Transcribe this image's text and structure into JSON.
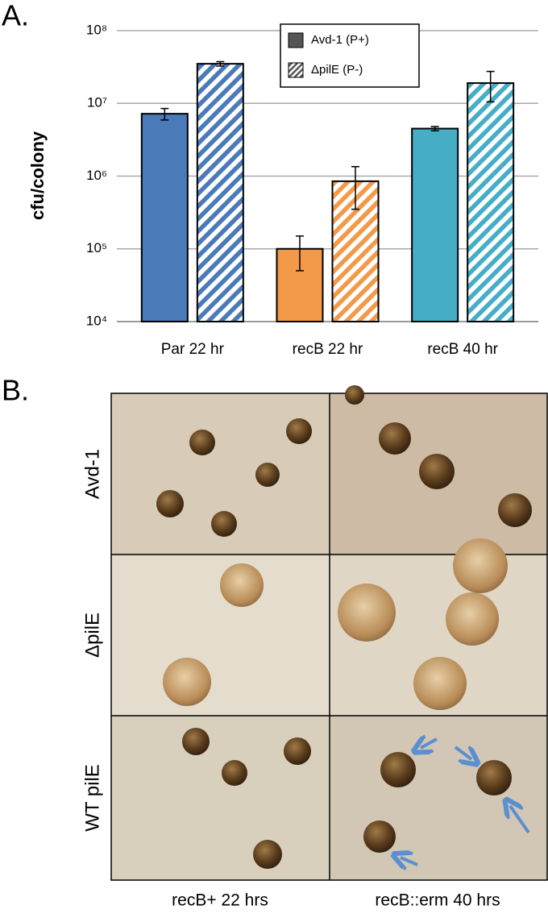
{
  "chart_data": {
    "type": "bar",
    "panel_label": "A.",
    "ylabel": "cfu/colony",
    "log_scale": true,
    "grid": true,
    "legend_position": "top",
    "categories": [
      "Par 22 hr",
      "recB 22 hr",
      "recB 40 hr"
    ],
    "bar_colors": [
      "#4a7ab8",
      "#f39a4a",
      "#45aec6"
    ],
    "series": [
      {
        "name": "Avd-1 (P+)",
        "color": "#555555",
        "pattern": "solid",
        "values": [
          7200000,
          100000,
          4500000
        ],
        "errors": [
          1300000,
          50000,
          300000
        ]
      },
      {
        "name": "ΔpilE (P-)",
        "color": "#555555",
        "pattern": "hatched",
        "values": [
          35000000,
          850000,
          19000000
        ],
        "errors": [
          2500000,
          500000,
          8500000
        ]
      }
    ],
    "ylim": [
      10000,
      100000000
    ],
    "yticks": [
      {
        "value": 10000,
        "label": "10⁴"
      },
      {
        "value": 100000,
        "label": "10⁵"
      },
      {
        "value": 1000000,
        "label": "10⁶"
      },
      {
        "value": 10000000,
        "label": "10⁷"
      },
      {
        "value": 100000000,
        "label": "10⁸"
      }
    ]
  },
  "panel_b": {
    "label": "B.",
    "rows": [
      "Avd-1",
      "ΔpilE",
      "WT pilE"
    ],
    "columns": [
      "recB+ 22 hrs",
      "recB::erm 40 hrs"
    ]
  }
}
